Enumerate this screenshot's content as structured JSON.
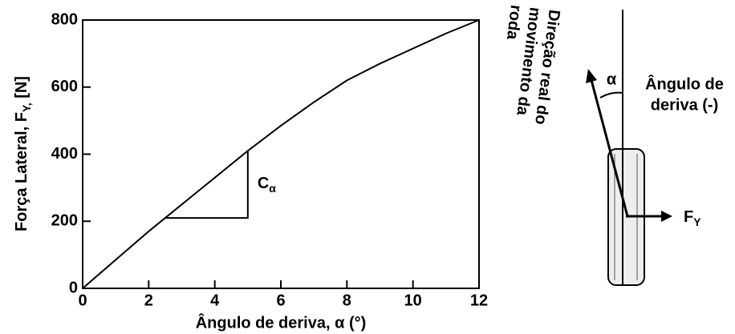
{
  "chart_data": {
    "type": "line",
    "x": [
      0,
      1,
      2,
      3,
      4,
      5,
      6,
      7,
      8,
      9,
      10,
      11,
      12
    ],
    "values": [
      0,
      85,
      170,
      250,
      330,
      410,
      485,
      555,
      620,
      670,
      715,
      760,
      800
    ],
    "color": "#000000",
    "xlabel": "Ângulo de deriva, α (°)",
    "ylabel": {
      "before": "Força Lateral, F",
      "subscript": "Y,",
      "after": " [N]"
    },
    "xlim": [
      0,
      12
    ],
    "xticks": [
      0,
      2,
      4,
      6,
      8,
      10,
      12
    ],
    "ylim": [
      0,
      800
    ],
    "yticks": [
      0,
      200,
      400,
      600,
      800
    ],
    "grid": false,
    "annotation": {
      "text": "C",
      "subscript": "α",
      "x": [
        2.5,
        5
      ],
      "y": [
        210,
        410
      ]
    }
  },
  "diagram": {
    "direction_label": [
      "Direção real do",
      "movimento da",
      "roda"
    ],
    "angle_symbol": "α",
    "angle_label": [
      "Ângulo de",
      "deriva (-)"
    ],
    "force_label": {
      "text": "F",
      "subscript": "Y"
    }
  }
}
